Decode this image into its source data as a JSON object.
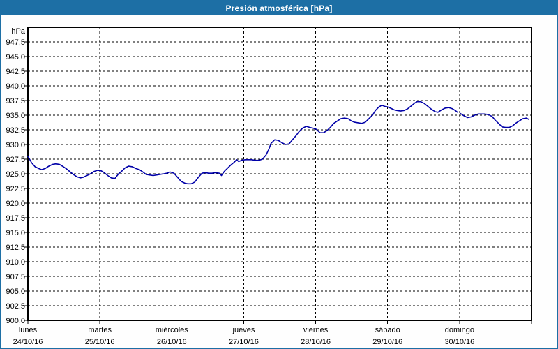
{
  "window": {
    "title": "Presión atmosférica [hPa]"
  },
  "colors": {
    "titlebar_bg": "#1d6fa5",
    "frame": "#1d6fa5",
    "title_text": "#ffffff",
    "plot_bg": "#ffffff",
    "grid": "#000000",
    "axis": "#000000",
    "tick_text": "#000000",
    "line": "#0000a8"
  },
  "chart_data": {
    "type": "line",
    "title": "Presión atmosférica [hPa]",
    "ylabel": "hPa",
    "xlabel": "",
    "ylim": [
      900,
      950
    ],
    "ytick_step": 2.5,
    "grid": "dashed, horizontal every 2.5 hPa and vertical at each day boundary",
    "legend_position": "none",
    "y_ticks": [
      {
        "v": 947.5,
        "label": "947,5"
      },
      {
        "v": 945.0,
        "label": "945,0"
      },
      {
        "v": 942.5,
        "label": "942,5"
      },
      {
        "v": 940.0,
        "label": "940,0"
      },
      {
        "v": 937.5,
        "label": "937,5"
      },
      {
        "v": 935.0,
        "label": "935,0"
      },
      {
        "v": 932.5,
        "label": "932,5"
      },
      {
        "v": 930.0,
        "label": "930,0"
      },
      {
        "v": 927.5,
        "label": "927,5"
      },
      {
        "v": 925.0,
        "label": "925,0"
      },
      {
        "v": 922.5,
        "label": "922,5"
      },
      {
        "v": 920.0,
        "label": "920,0"
      },
      {
        "v": 917.5,
        "label": "917,5"
      },
      {
        "v": 915.0,
        "label": "915,0"
      },
      {
        "v": 912.5,
        "label": "912,5"
      },
      {
        "v": 910.0,
        "label": "910,0"
      },
      {
        "v": 907.5,
        "label": "907,5"
      },
      {
        "v": 905.0,
        "label": "905,0"
      },
      {
        "v": 902.5,
        "label": "902,5"
      },
      {
        "v": 900.0,
        "label": "900,0"
      }
    ],
    "days": [
      {
        "name": "lunes",
        "date": "24/10/16"
      },
      {
        "name": "martes",
        "date": "25/10/16"
      },
      {
        "name": "miércoles",
        "date": "26/10/16"
      },
      {
        "name": "jueves",
        "date": "27/10/16"
      },
      {
        "name": "viernes",
        "date": "28/10/16"
      },
      {
        "name": "sábado",
        "date": "29/10/16"
      },
      {
        "name": "domingo",
        "date": "30/10/16"
      }
    ],
    "series": [
      {
        "name": "presión atmosférica",
        "unit": "hPa",
        "color": "#0000a8",
        "points": [
          [
            0.0,
            928.0
          ],
          [
            0.05,
            926.9
          ],
          [
            0.1,
            926.2
          ],
          [
            0.15,
            925.9
          ],
          [
            0.19,
            925.7
          ],
          [
            0.24,
            925.9
          ],
          [
            0.29,
            926.3
          ],
          [
            0.34,
            926.6
          ],
          [
            0.39,
            926.7
          ],
          [
            0.44,
            926.6
          ],
          [
            0.48,
            926.3
          ],
          [
            0.53,
            925.9
          ],
          [
            0.58,
            925.4
          ],
          [
            0.63,
            924.9
          ],
          [
            0.68,
            924.5
          ],
          [
            0.73,
            924.3
          ],
          [
            0.77,
            924.4
          ],
          [
            0.82,
            924.7
          ],
          [
            0.87,
            925.0
          ],
          [
            0.92,
            925.4
          ],
          [
            0.97,
            925.6
          ],
          [
            1.02,
            925.5
          ],
          [
            1.06,
            925.2
          ],
          [
            1.11,
            924.7
          ],
          [
            1.16,
            924.3
          ],
          [
            1.21,
            924.2
          ],
          [
            1.26,
            925.0
          ],
          [
            1.31,
            925.5
          ],
          [
            1.35,
            926.0
          ],
          [
            1.4,
            926.3
          ],
          [
            1.45,
            926.2
          ],
          [
            1.5,
            925.9
          ],
          [
            1.55,
            925.7
          ],
          [
            1.6,
            925.3
          ],
          [
            1.64,
            924.9
          ],
          [
            1.69,
            924.8
          ],
          [
            1.74,
            924.7
          ],
          [
            1.79,
            924.8
          ],
          [
            1.84,
            924.9
          ],
          [
            1.89,
            925.0
          ],
          [
            1.93,
            925.1
          ],
          [
            1.98,
            925.3
          ],
          [
            2.03,
            925.1
          ],
          [
            2.08,
            924.4
          ],
          [
            2.13,
            923.7
          ],
          [
            2.18,
            923.4
          ],
          [
            2.22,
            923.3
          ],
          [
            2.27,
            923.3
          ],
          [
            2.32,
            923.6
          ],
          [
            2.37,
            924.4
          ],
          [
            2.42,
            925.1
          ],
          [
            2.47,
            925.2
          ],
          [
            2.51,
            925.1
          ],
          [
            2.56,
            925.1
          ],
          [
            2.61,
            925.2
          ],
          [
            2.66,
            925.1
          ],
          [
            2.69,
            924.7
          ],
          [
            2.73,
            925.4
          ],
          [
            2.78,
            926.0
          ],
          [
            2.82,
            926.5
          ],
          [
            2.87,
            927.0
          ],
          [
            2.9,
            927.4
          ],
          [
            2.93,
            927.1
          ],
          [
            2.97,
            927.3
          ],
          [
            3.02,
            927.4
          ],
          [
            3.07,
            927.4
          ],
          [
            3.11,
            927.4
          ],
          [
            3.16,
            927.3
          ],
          [
            3.21,
            927.3
          ],
          [
            3.26,
            927.5
          ],
          [
            3.31,
            928.2
          ],
          [
            3.35,
            929.2
          ],
          [
            3.38,
            930.2
          ],
          [
            3.43,
            930.8
          ],
          [
            3.48,
            930.7
          ],
          [
            3.53,
            930.3
          ],
          [
            3.58,
            930.0
          ],
          [
            3.63,
            930.1
          ],
          [
            3.67,
            930.7
          ],
          [
            3.72,
            931.4
          ],
          [
            3.77,
            932.2
          ],
          [
            3.82,
            932.8
          ],
          [
            3.87,
            933.1
          ],
          [
            3.92,
            932.9
          ],
          [
            3.96,
            932.8
          ],
          [
            4.01,
            932.6
          ],
          [
            4.06,
            932.0
          ],
          [
            4.11,
            932.0
          ],
          [
            4.16,
            932.4
          ],
          [
            4.21,
            933.0
          ],
          [
            4.25,
            933.6
          ],
          [
            4.3,
            934.0
          ],
          [
            4.35,
            934.4
          ],
          [
            4.4,
            934.5
          ],
          [
            4.45,
            934.4
          ],
          [
            4.5,
            934.0
          ],
          [
            4.54,
            933.8
          ],
          [
            4.59,
            933.7
          ],
          [
            4.64,
            933.6
          ],
          [
            4.69,
            933.8
          ],
          [
            4.74,
            934.4
          ],
          [
            4.79,
            935.0
          ],
          [
            4.83,
            935.8
          ],
          [
            4.88,
            936.4
          ],
          [
            4.92,
            936.7
          ],
          [
            4.96,
            936.5
          ],
          [
            5.0,
            936.4
          ],
          [
            5.04,
            936.2
          ],
          [
            5.09,
            935.9
          ],
          [
            5.13,
            935.8
          ],
          [
            5.18,
            935.7
          ],
          [
            5.23,
            935.8
          ],
          [
            5.28,
            936.1
          ],
          [
            5.33,
            936.6
          ],
          [
            5.38,
            937.1
          ],
          [
            5.41,
            937.3
          ],
          [
            5.46,
            937.3
          ],
          [
            5.51,
            937.0
          ],
          [
            5.56,
            936.5
          ],
          [
            5.61,
            936.0
          ],
          [
            5.66,
            935.6
          ],
          [
            5.7,
            935.5
          ],
          [
            5.75,
            935.9
          ],
          [
            5.8,
            936.2
          ],
          [
            5.85,
            936.3
          ],
          [
            5.9,
            936.1
          ],
          [
            5.94,
            935.8
          ],
          [
            5.97,
            935.5
          ],
          null,
          [
            6.01,
            935.3
          ],
          [
            6.06,
            934.9
          ],
          [
            6.11,
            934.6
          ],
          [
            6.16,
            934.7
          ],
          [
            6.21,
            935.0
          ],
          [
            6.26,
            935.2
          ],
          [
            6.3,
            935.2
          ],
          [
            6.35,
            935.2
          ],
          [
            6.4,
            935.1
          ],
          [
            6.45,
            934.8
          ],
          [
            6.5,
            934.1
          ],
          [
            6.55,
            933.5
          ],
          [
            6.59,
            933.0
          ],
          [
            6.64,
            932.9
          ],
          [
            6.69,
            932.9
          ],
          [
            6.74,
            933.2
          ],
          [
            6.79,
            933.7
          ],
          [
            6.84,
            934.1
          ],
          [
            6.88,
            934.4
          ],
          [
            6.93,
            934.5
          ],
          [
            6.96,
            934.3
          ]
        ]
      }
    ]
  }
}
